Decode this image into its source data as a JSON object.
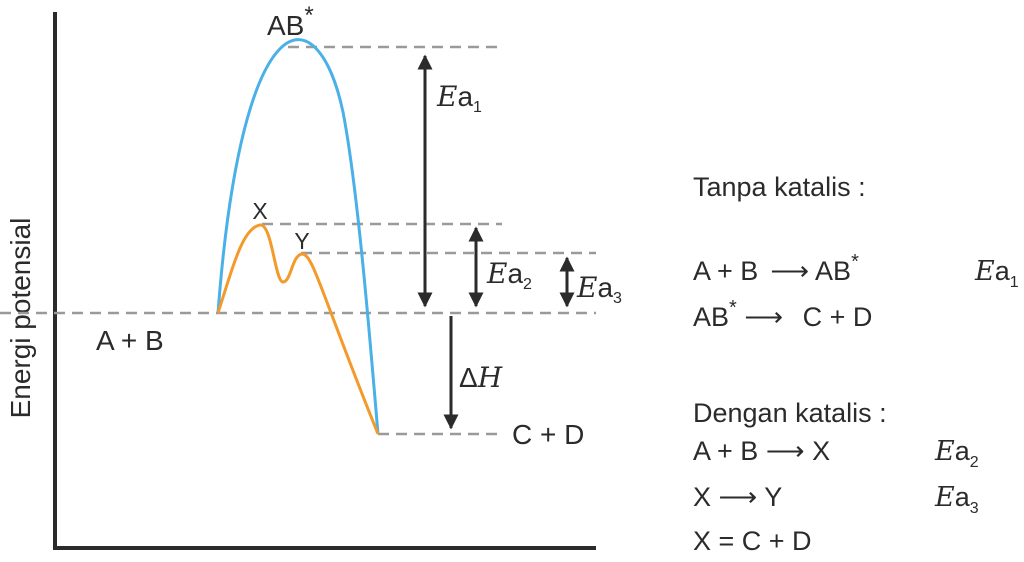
{
  "axis": {
    "y_label": "Energi potensial"
  },
  "states": {
    "reactants": "A + B",
    "products": "C + D",
    "activated_complex": "AB",
    "star": "*",
    "intermediate_x": "X",
    "intermediate_y": "Y"
  },
  "arrows": {
    "ea_symbol": "E",
    "ea_letter": "a",
    "ea1_sub": "1",
    "ea2_sub": "2",
    "ea3_sub": "3",
    "delta_symbol": "Δ",
    "delta_letter": "H"
  },
  "colors": {
    "uncatalyzed": "#4ab0e8",
    "catalyzed": "#f39a2b",
    "dashed": "#9a9a9a",
    "ink": "#2b2b2b"
  },
  "panel": {
    "no_catalyst_title": "Tanpa katalis :",
    "eq1_left": "A + B",
    "eq1_right": "AB",
    "eq1_star": "*",
    "eq2_left": "AB",
    "eq2_star": "*",
    "eq2_right": "C + D",
    "catalyst_title": "Dengan katalis :",
    "eq3_left": "A + B",
    "eq3_right": "X",
    "eq4_left": "X",
    "eq4_right": "Y",
    "eq5": "X = C + D",
    "arrow": "⟶",
    "ea_symbol": "E",
    "ea_letter": "a",
    "ea1_sub": "1",
    "ea2_sub": "2",
    "ea3_sub": "3"
  }
}
